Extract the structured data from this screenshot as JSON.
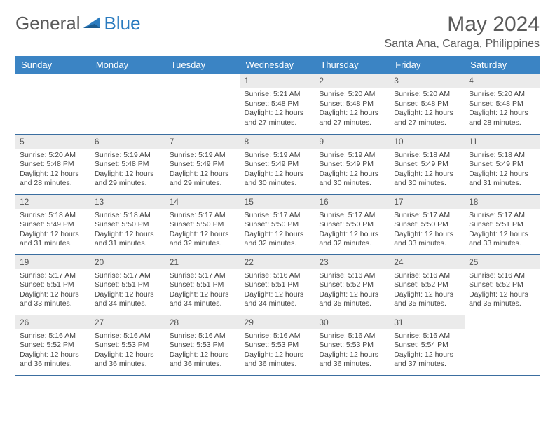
{
  "brand": {
    "part1": "General",
    "part2": "Blue"
  },
  "colors": {
    "header_bg": "#3b84c4",
    "header_text": "#ffffff",
    "daynum_bg": "#ebebeb",
    "border": "#3b6ea0",
    "brand_blue": "#2a7bbf",
    "text_gray": "#5a5a5a"
  },
  "title": "May 2024",
  "location": "Santa Ana, Caraga, Philippines",
  "weekdays": [
    "Sunday",
    "Monday",
    "Tuesday",
    "Wednesday",
    "Thursday",
    "Friday",
    "Saturday"
  ],
  "layout": {
    "first_weekday_index": 3,
    "days_in_month": 31
  },
  "days": {
    "1": {
      "sunrise": "5:21 AM",
      "sunset": "5:48 PM",
      "daylight": "12 hours and 27 minutes."
    },
    "2": {
      "sunrise": "5:20 AM",
      "sunset": "5:48 PM",
      "daylight": "12 hours and 27 minutes."
    },
    "3": {
      "sunrise": "5:20 AM",
      "sunset": "5:48 PM",
      "daylight": "12 hours and 27 minutes."
    },
    "4": {
      "sunrise": "5:20 AM",
      "sunset": "5:48 PM",
      "daylight": "12 hours and 28 minutes."
    },
    "5": {
      "sunrise": "5:20 AM",
      "sunset": "5:48 PM",
      "daylight": "12 hours and 28 minutes."
    },
    "6": {
      "sunrise": "5:19 AM",
      "sunset": "5:48 PM",
      "daylight": "12 hours and 29 minutes."
    },
    "7": {
      "sunrise": "5:19 AM",
      "sunset": "5:49 PM",
      "daylight": "12 hours and 29 minutes."
    },
    "8": {
      "sunrise": "5:19 AM",
      "sunset": "5:49 PM",
      "daylight": "12 hours and 30 minutes."
    },
    "9": {
      "sunrise": "5:19 AM",
      "sunset": "5:49 PM",
      "daylight": "12 hours and 30 minutes."
    },
    "10": {
      "sunrise": "5:18 AM",
      "sunset": "5:49 PM",
      "daylight": "12 hours and 30 minutes."
    },
    "11": {
      "sunrise": "5:18 AM",
      "sunset": "5:49 PM",
      "daylight": "12 hours and 31 minutes."
    },
    "12": {
      "sunrise": "5:18 AM",
      "sunset": "5:49 PM",
      "daylight": "12 hours and 31 minutes."
    },
    "13": {
      "sunrise": "5:18 AM",
      "sunset": "5:50 PM",
      "daylight": "12 hours and 31 minutes."
    },
    "14": {
      "sunrise": "5:17 AM",
      "sunset": "5:50 PM",
      "daylight": "12 hours and 32 minutes."
    },
    "15": {
      "sunrise": "5:17 AM",
      "sunset": "5:50 PM",
      "daylight": "12 hours and 32 minutes."
    },
    "16": {
      "sunrise": "5:17 AM",
      "sunset": "5:50 PM",
      "daylight": "12 hours and 32 minutes."
    },
    "17": {
      "sunrise": "5:17 AM",
      "sunset": "5:50 PM",
      "daylight": "12 hours and 33 minutes."
    },
    "18": {
      "sunrise": "5:17 AM",
      "sunset": "5:51 PM",
      "daylight": "12 hours and 33 minutes."
    },
    "19": {
      "sunrise": "5:17 AM",
      "sunset": "5:51 PM",
      "daylight": "12 hours and 33 minutes."
    },
    "20": {
      "sunrise": "5:17 AM",
      "sunset": "5:51 PM",
      "daylight": "12 hours and 34 minutes."
    },
    "21": {
      "sunrise": "5:17 AM",
      "sunset": "5:51 PM",
      "daylight": "12 hours and 34 minutes."
    },
    "22": {
      "sunrise": "5:16 AM",
      "sunset": "5:51 PM",
      "daylight": "12 hours and 34 minutes."
    },
    "23": {
      "sunrise": "5:16 AM",
      "sunset": "5:52 PM",
      "daylight": "12 hours and 35 minutes."
    },
    "24": {
      "sunrise": "5:16 AM",
      "sunset": "5:52 PM",
      "daylight": "12 hours and 35 minutes."
    },
    "25": {
      "sunrise": "5:16 AM",
      "sunset": "5:52 PM",
      "daylight": "12 hours and 35 minutes."
    },
    "26": {
      "sunrise": "5:16 AM",
      "sunset": "5:52 PM",
      "daylight": "12 hours and 36 minutes."
    },
    "27": {
      "sunrise": "5:16 AM",
      "sunset": "5:53 PM",
      "daylight": "12 hours and 36 minutes."
    },
    "28": {
      "sunrise": "5:16 AM",
      "sunset": "5:53 PM",
      "daylight": "12 hours and 36 minutes."
    },
    "29": {
      "sunrise": "5:16 AM",
      "sunset": "5:53 PM",
      "daylight": "12 hours and 36 minutes."
    },
    "30": {
      "sunrise": "5:16 AM",
      "sunset": "5:53 PM",
      "daylight": "12 hours and 36 minutes."
    },
    "31": {
      "sunrise": "5:16 AM",
      "sunset": "5:54 PM",
      "daylight": "12 hours and 37 minutes."
    }
  },
  "labels": {
    "sunrise": "Sunrise:",
    "sunset": "Sunset:",
    "daylight": "Daylight:"
  }
}
